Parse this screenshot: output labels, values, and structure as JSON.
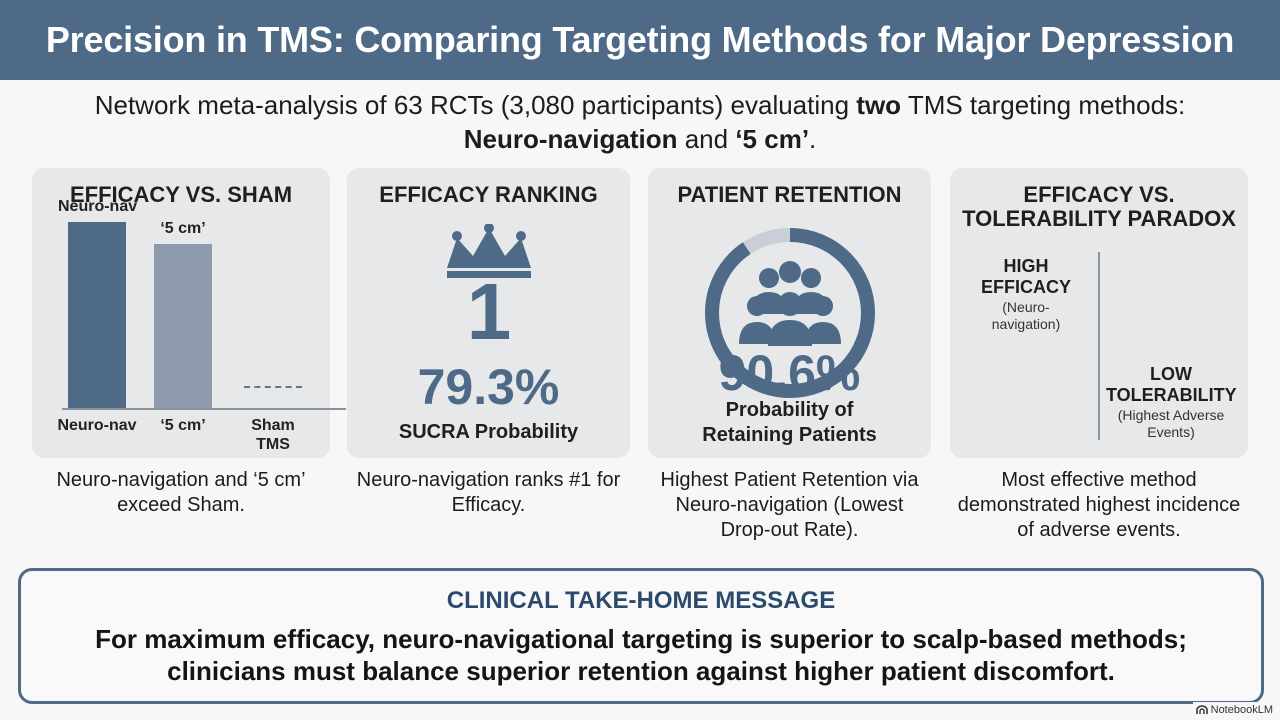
{
  "header": {
    "title": "Precision in TMS: Comparing Targeting Methods for Major Depression"
  },
  "intro": {
    "line1_before": "Network meta-analysis of 63 RCTs (3,080 participants) evaluating ",
    "line1_bold": "two",
    "line1_after": " TMS targeting methods:",
    "line2_bold1": "Neuro-navigation",
    "line2_mid": " and ",
    "line2_bold2": "‘5 cm’",
    "line2_end": "."
  },
  "cards": [
    {
      "title": "EFFICACY VS. SHAM",
      "caption": "Neuro-navigation and ‘5 cm’ exceed Sham."
    },
    {
      "title": "EFFICACY RANKING",
      "rank": "1",
      "value": "79.3%",
      "label": "SUCRA Probability",
      "caption": "Neuro-navigation ranks #1 for Efficacy."
    },
    {
      "title": "PATIENT RETENTION",
      "value": "90.6%",
      "percent": 90.6,
      "label_line1": "Probability of",
      "label_line2": "Retaining Patients",
      "caption": "Highest Patient Retention via Neuro-navigation (Lowest Drop-out Rate)."
    },
    {
      "title_line1": "EFFICACY VS.",
      "title_line2": "TOLERABILITY PARADOX",
      "high_line1": "HIGH",
      "high_line2": "EFFICACY",
      "high_sub": "(Neuro-navigation)",
      "low_line1": "LOW",
      "low_line2": "TOLERABILITY",
      "low_sub": "(Highest Adverse Events)",
      "caption": "Most effective method demonstrated highest incidence of adverse events."
    }
  ],
  "chart_data": {
    "type": "bar",
    "categories": [
      "Neuro-nav",
      "‘5 cm’",
      "Sham TMS"
    ],
    "top_labels": [
      "Neuro-nav",
      "‘5 cm’",
      ""
    ],
    "values": [
      1.0,
      0.88,
      0.12
    ],
    "ylim": [
      0,
      1.0
    ],
    "title": "EFFICACY VS. SHAM",
    "xlabel": "",
    "ylabel": "",
    "grid": false,
    "colors": [
      "#4e6a87",
      "#8c9aab",
      "#6b747d"
    ]
  },
  "message": {
    "title": "CLINICAL TAKE-HOME MESSAGE",
    "line1": "For maximum efficacy, neuro-navigational targeting is superior to scalp-based methods;",
    "line2": "clinicians must balance superior retention against higher patient discomfort."
  },
  "brand": {
    "label": "NotebookLM"
  },
  "colors": {
    "accent": "#4e6a87",
    "muted": "#8c9aab",
    "card": "#e6e8ea",
    "message_title": "#2c4a6b"
  },
  "icons": {
    "crown": "crown-icon",
    "people": "people-group-icon",
    "brand": "notebooklm-logo"
  }
}
